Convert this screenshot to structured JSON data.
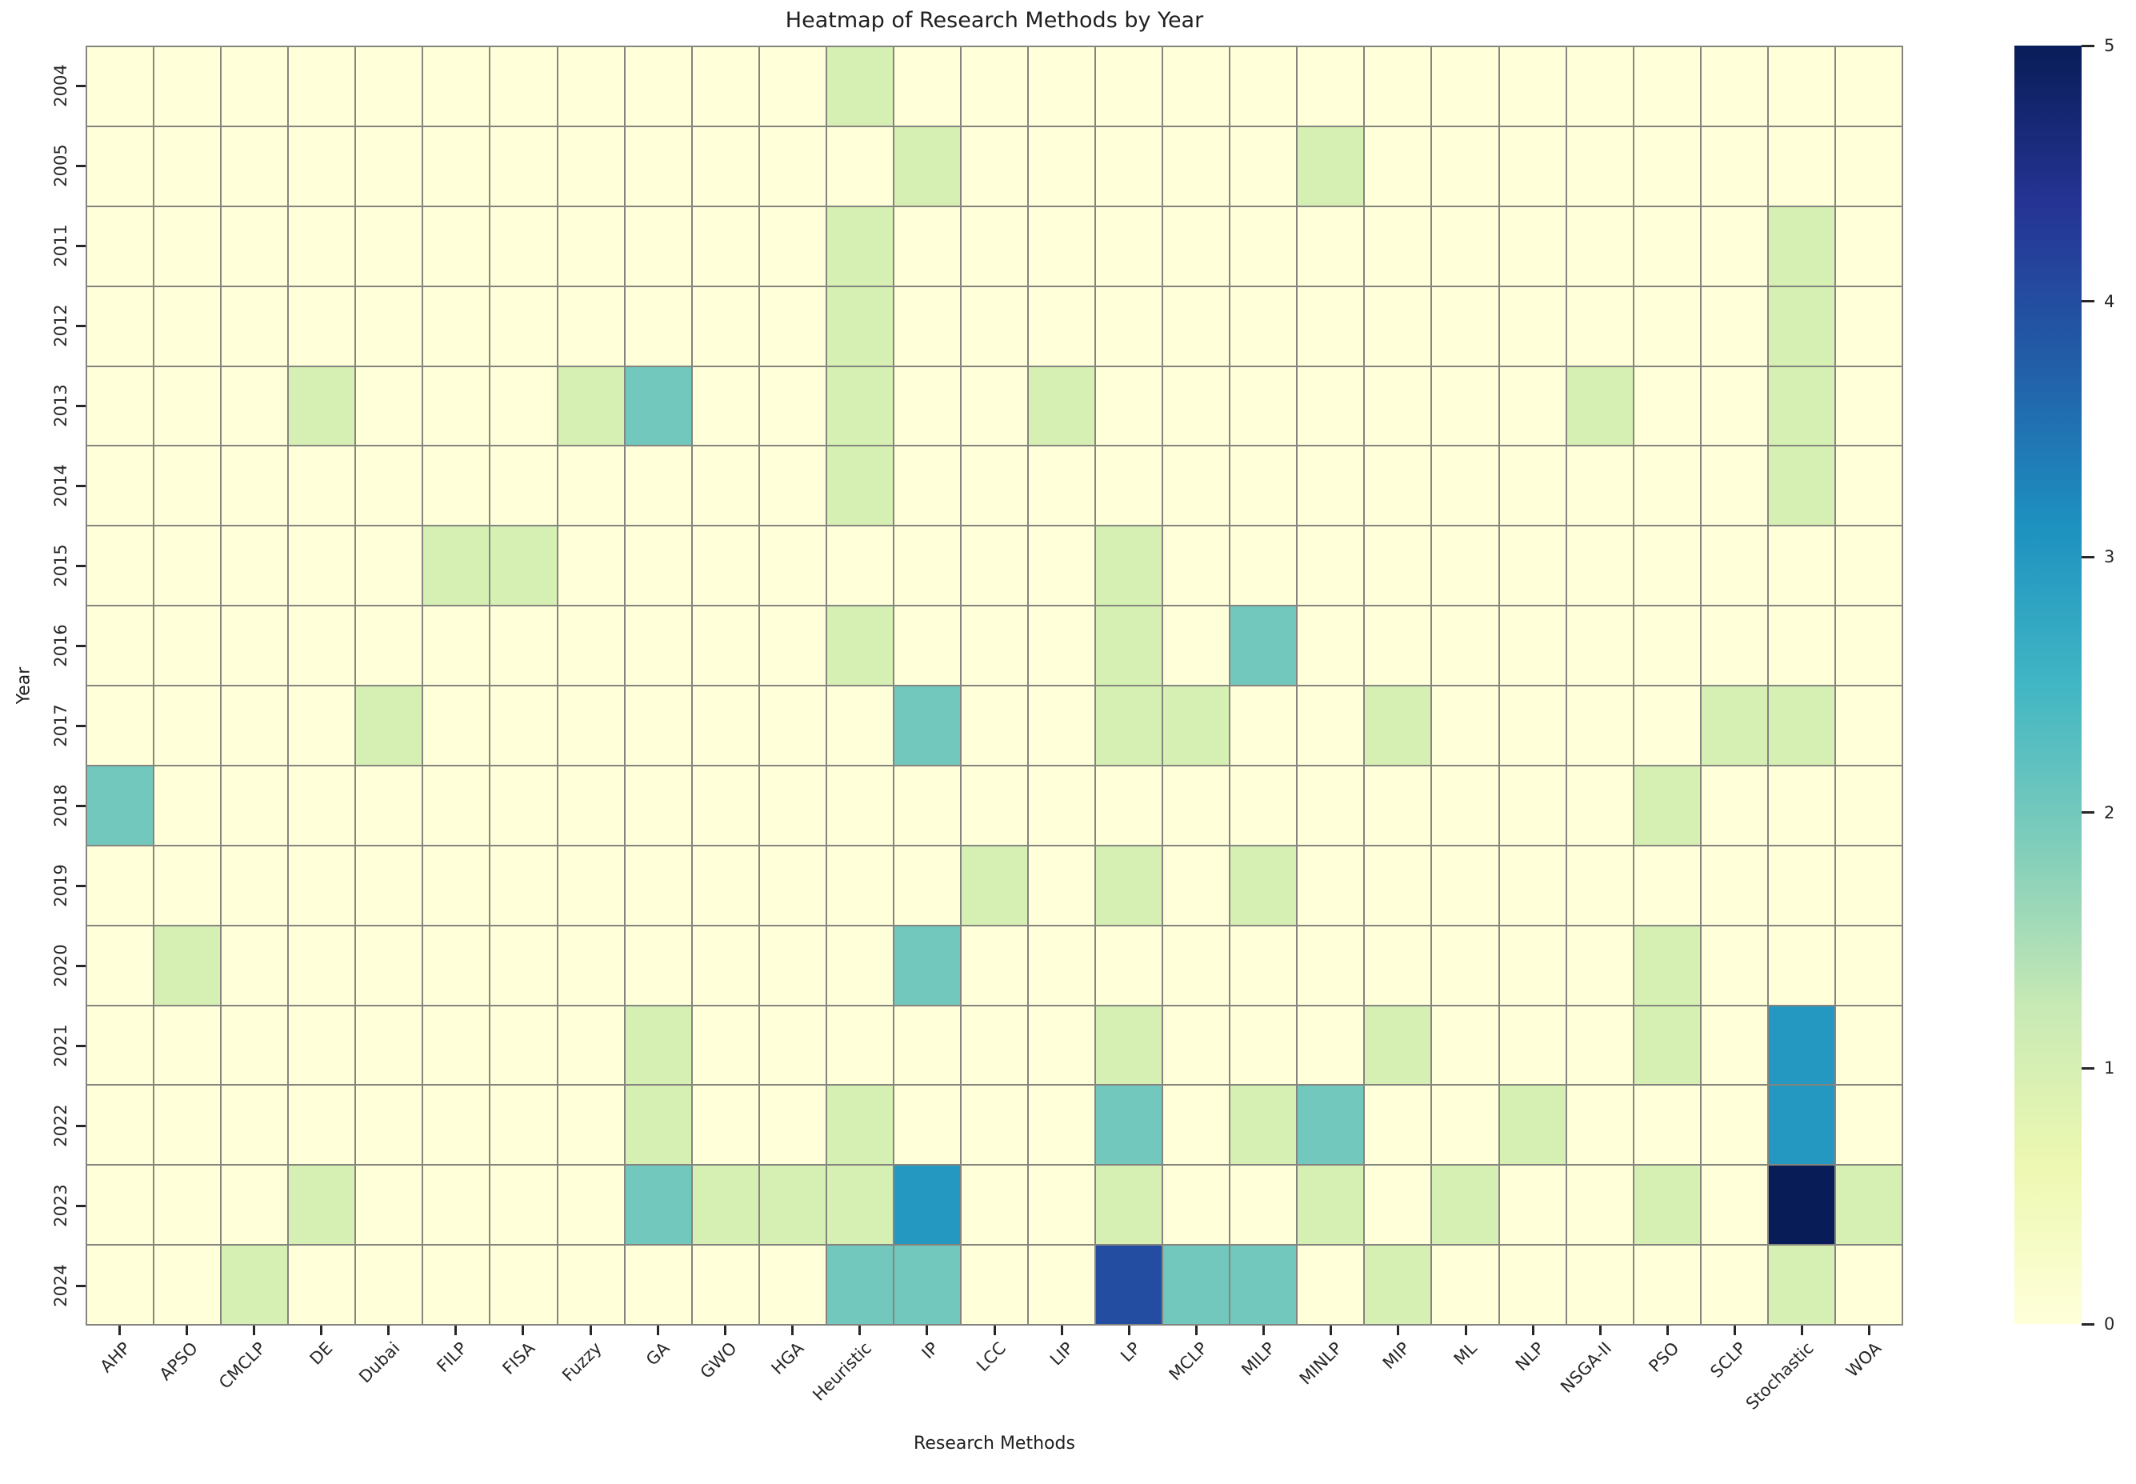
{
  "title": "Heatmap of Research Methods by Year",
  "x_axis_title": "Research Methods",
  "y_axis_title": "Year",
  "colors": {
    "background": "#ffffff",
    "grid_line": "#848480",
    "text": "#262626",
    "tick": "#262626"
  },
  "chart_data": {
    "type": "heatmap",
    "title": "Heatmap of Research Methods by Year",
    "xlabel": "Research Methods",
    "ylabel": "Year",
    "columns": [
      "AHP",
      "APSO",
      "CMCLP",
      "DE",
      "Dubai",
      "FILP",
      "FISA",
      "Fuzzy",
      "GA",
      "GWO",
      "HGA",
      "Heuristic",
      "IP",
      "LCC",
      "LIP",
      "LP",
      "MCLP",
      "MILP",
      "MINLP",
      "MIP",
      "ML",
      "NLP",
      "NSGA-II",
      "PSO",
      "SCLP",
      "Stochastic",
      "WOA"
    ],
    "rows": [
      "2004",
      "2005",
      "2011",
      "2012",
      "2013",
      "2014",
      "2015",
      "2016",
      "2017",
      "2018",
      "2019",
      "2020",
      "2021",
      "2022",
      "2023",
      "2024"
    ],
    "values": [
      [
        0,
        0,
        0,
        0,
        0,
        0,
        0,
        0,
        0,
        0,
        0,
        1,
        0,
        0,
        0,
        0,
        0,
        0,
        0,
        0,
        0,
        0,
        0,
        0,
        0,
        0,
        0
      ],
      [
        0,
        0,
        0,
        0,
        0,
        0,
        0,
        0,
        0,
        0,
        0,
        0,
        1,
        0,
        0,
        0,
        0,
        0,
        1,
        0,
        0,
        0,
        0,
        0,
        0,
        0,
        0
      ],
      [
        0,
        0,
        0,
        0,
        0,
        0,
        0,
        0,
        0,
        0,
        0,
        1,
        0,
        0,
        0,
        0,
        0,
        0,
        0,
        0,
        0,
        0,
        0,
        0,
        0,
        1,
        0
      ],
      [
        0,
        0,
        0,
        0,
        0,
        0,
        0,
        0,
        0,
        0,
        0,
        1,
        0,
        0,
        0,
        0,
        0,
        0,
        0,
        0,
        0,
        0,
        0,
        0,
        0,
        1,
        0
      ],
      [
        0,
        0,
        0,
        1,
        0,
        0,
        0,
        1,
        2,
        0,
        0,
        1,
        0,
        0,
        1,
        0,
        0,
        0,
        0,
        0,
        0,
        0,
        1,
        0,
        0,
        1,
        0
      ],
      [
        0,
        0,
        0,
        0,
        0,
        0,
        0,
        0,
        0,
        0,
        0,
        1,
        0,
        0,
        0,
        0,
        0,
        0,
        0,
        0,
        0,
        0,
        0,
        0,
        0,
        1,
        0
      ],
      [
        0,
        0,
        0,
        0,
        0,
        1,
        1,
        0,
        0,
        0,
        0,
        0,
        0,
        0,
        0,
        1,
        0,
        0,
        0,
        0,
        0,
        0,
        0,
        0,
        0,
        0,
        0
      ],
      [
        0,
        0,
        0,
        0,
        0,
        0,
        0,
        0,
        0,
        0,
        0,
        1,
        0,
        0,
        0,
        1,
        0,
        2,
        0,
        0,
        0,
        0,
        0,
        0,
        0,
        0,
        0
      ],
      [
        0,
        0,
        0,
        0,
        1,
        0,
        0,
        0,
        0,
        0,
        0,
        0,
        2,
        0,
        0,
        1,
        1,
        0,
        0,
        1,
        0,
        0,
        0,
        0,
        1,
        1,
        0
      ],
      [
        2,
        0,
        0,
        0,
        0,
        0,
        0,
        0,
        0,
        0,
        0,
        0,
        0,
        0,
        0,
        0,
        0,
        0,
        0,
        0,
        0,
        0,
        0,
        1,
        0,
        0,
        0
      ],
      [
        0,
        0,
        0,
        0,
        0,
        0,
        0,
        0,
        0,
        0,
        0,
        0,
        0,
        1,
        0,
        1,
        0,
        1,
        0,
        0,
        0,
        0,
        0,
        0,
        0,
        0,
        0
      ],
      [
        0,
        1,
        0,
        0,
        0,
        0,
        0,
        0,
        0,
        0,
        0,
        0,
        2,
        0,
        0,
        0,
        0,
        0,
        0,
        0,
        0,
        0,
        0,
        1,
        0,
        0,
        0
      ],
      [
        0,
        0,
        0,
        0,
        0,
        0,
        0,
        0,
        1,
        0,
        0,
        0,
        0,
        0,
        0,
        1,
        0,
        0,
        0,
        1,
        0,
        0,
        0,
        1,
        0,
        3,
        0
      ],
      [
        0,
        0,
        0,
        0,
        0,
        0,
        0,
        0,
        1,
        0,
        0,
        1,
        0,
        0,
        0,
        2,
        0,
        1,
        2,
        0,
        0,
        1,
        0,
        0,
        0,
        3,
        0
      ],
      [
        0,
        0,
        0,
        1,
        0,
        0,
        0,
        0,
        2,
        1,
        1,
        1,
        3,
        0,
        0,
        1,
        0,
        0,
        1,
        0,
        1,
        0,
        0,
        1,
        0,
        5,
        1
      ],
      [
        0,
        0,
        1,
        0,
        0,
        0,
        0,
        0,
        0,
        0,
        0,
        2,
        2,
        0,
        0,
        4,
        2,
        2,
        0,
        1,
        0,
        0,
        0,
        0,
        0,
        1,
        0
      ]
    ],
    "vmin": 0,
    "vmax": 5,
    "colormap": "YlGnBu",
    "colormap_stops": [
      "#ffffd9",
      "#edf8b1",
      "#c7e9b4",
      "#7fcdbb",
      "#41b6c4",
      "#1d91c0",
      "#225ea8",
      "#253494",
      "#081d58"
    ],
    "colorbar_ticks": [
      "0",
      "1",
      "2",
      "3",
      "4",
      "5"
    ],
    "grid_on": true,
    "legend_position": "right-colorbar"
  }
}
